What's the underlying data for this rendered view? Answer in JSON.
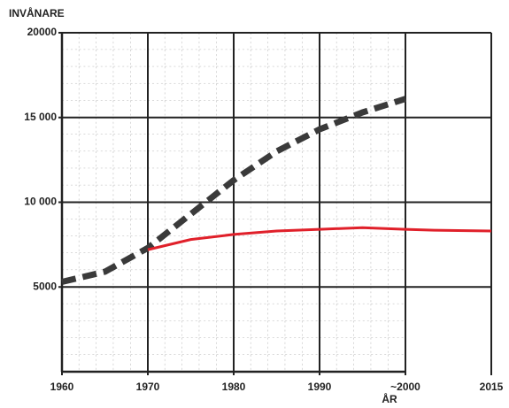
{
  "chart_data": {
    "type": "line",
    "y_label": "INVÅNARE",
    "x_label": "ÅR",
    "xlim": [
      1960,
      2015
    ],
    "xticks": [
      1960,
      1970,
      1980,
      1990,
      {
        "value": 2000,
        "label": "~2000"
      },
      2015
    ],
    "ylim": [
      0,
      20000
    ],
    "yticks": [
      {
        "value": 5000,
        "label": "5000"
      },
      {
        "value": 10000,
        "label": "10 000"
      },
      {
        "value": 15000,
        "label": "15 000"
      },
      20000
    ],
    "grid": true,
    "series": [
      {
        "color": "#3a3a3a",
        "style": "dashed",
        "x": [
          1960,
          1965,
          1970,
          1975,
          1980,
          1985,
          1990,
          1995,
          2000
        ],
        "values": [
          5300,
          5900,
          7300,
          9300,
          11300,
          13000,
          14300,
          15300,
          16100
        ]
      },
      {
        "color": "#e0202a",
        "style": "solid",
        "x": [
          1970,
          1975,
          1980,
          1985,
          1990,
          1995,
          2000,
          2005,
          2015
        ],
        "values": [
          7200,
          7800,
          8100,
          8300,
          8400,
          8500,
          8400,
          8350,
          8300
        ]
      }
    ]
  }
}
